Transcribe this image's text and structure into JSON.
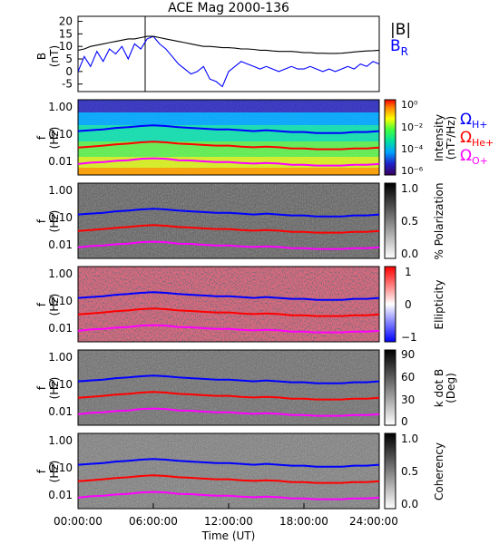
{
  "figure_title": "ACE Mag 2000-136",
  "time_axis": {
    "label": "Time (UT)",
    "ticks": [
      "00:00:00",
      "06:00:00",
      "12:00:00",
      "18:00:00",
      "24:00:00"
    ],
    "hours": [
      0,
      6,
      12,
      18,
      24
    ]
  },
  "chart_data": [
    {
      "type": "line",
      "ylabel_top": "B",
      "ylabel_bottom": "(nT)",
      "ylim": [
        -8,
        22
      ],
      "yticks": [
        20,
        15,
        10,
        5,
        0,
        -5
      ],
      "ytick_labels": [
        "20",
        "15",
        "10",
        "5",
        "0",
        "-5"
      ],
      "legend": [
        "|B|",
        "B",
        "R"
      ],
      "series": [
        {
          "name": "|B|",
          "color": "#000000",
          "x": [
            0,
            0.5,
            1,
            1.5,
            2,
            2.5,
            3,
            3.5,
            4,
            4.5,
            5,
            5.5,
            6,
            6.5,
            7,
            7.5,
            8,
            8.5,
            9,
            9.5,
            10,
            10.5,
            11,
            11.5,
            12,
            12.5,
            13,
            13.5,
            14,
            14.5,
            15,
            15.5,
            16,
            16.5,
            17,
            17.5,
            18,
            18.5,
            19,
            19.5,
            20,
            20.5,
            21,
            21.5,
            22,
            22.5,
            23,
            23.5,
            24
          ],
          "values": [
            8.5,
            9,
            10,
            10.5,
            11,
            11.5,
            12,
            12.5,
            13,
            13,
            13.5,
            14,
            14,
            13.5,
            13,
            12.5,
            12,
            11.5,
            11,
            10.5,
            10,
            10,
            9.8,
            9.5,
            9.5,
            9.3,
            9,
            9,
            8.8,
            8.5,
            8.5,
            8.2,
            8,
            8,
            8,
            7.8,
            7.5,
            7.5,
            7.3,
            7.3,
            7.2,
            7.2,
            7.3,
            7.5,
            7.8,
            8,
            8.2,
            8.3,
            8.5
          ]
        },
        {
          "name": "B_R",
          "color": "#0000ff",
          "x": [
            0,
            0.5,
            1,
            1.5,
            2,
            2.5,
            3,
            3.5,
            4,
            4.5,
            5,
            5.5,
            6,
            6.5,
            7,
            7.5,
            8,
            8.5,
            9,
            9.5,
            10,
            10.5,
            11,
            11.5,
            12,
            12.5,
            13,
            13.5,
            14,
            14.5,
            15,
            15.5,
            16,
            16.5,
            17,
            17.5,
            18,
            18.5,
            19,
            19.5,
            20,
            20.5,
            21,
            21.5,
            22,
            22.5,
            23,
            23.5,
            24
          ],
          "values": [
            0,
            6,
            2,
            8,
            4,
            9,
            7,
            10,
            5,
            11,
            9,
            13,
            14,
            11,
            9,
            6,
            3,
            1,
            -1,
            0,
            2,
            -3,
            -4,
            -6,
            0,
            2,
            4,
            3,
            2,
            1,
            2,
            1,
            0,
            1,
            2,
            1,
            1,
            2,
            1,
            0,
            1,
            0,
            1,
            2,
            1,
            3,
            2,
            4,
            3
          ]
        }
      ]
    },
    {
      "type": "heatmap",
      "ylabel_top": "f",
      "ylabel_bottom": "(Hz)",
      "yticks": [
        1.0,
        0.1,
        0.01
      ],
      "ytick_labels": [
        "1.00",
        "0.10",
        "0.01"
      ],
      "colorbar": {
        "title": "Intensity",
        "units": "(nT²/Hz)",
        "scale": "log",
        "range": [
          1e-06,
          1
        ],
        "tick_labels": [
          "10⁰",
          "10⁻²",
          "10⁻⁴",
          "10⁻⁶"
        ]
      },
      "gyro_lines": [
        {
          "name": "Ω",
          "sub": "H+",
          "color": "#0000ff"
        },
        {
          "name": "Ω",
          "sub": "He+",
          "color": "#ff0000"
        },
        {
          "name": "Ω",
          "sub": "O+",
          "color": "#ff00ff"
        }
      ]
    },
    {
      "type": "heatmap",
      "ylabel_top": "f",
      "ylabel_bottom": "(Hz)",
      "ytick_labels": [
        "1.00",
        "0.10",
        "0.01"
      ],
      "colorbar": {
        "title": "% Polarization",
        "range": [
          0,
          1
        ],
        "tick_labels": [
          "1.0",
          "0.5",
          "0.0"
        ]
      }
    },
    {
      "type": "heatmap",
      "ylabel_top": "f",
      "ylabel_bottom": "(Hz)",
      "ytick_labels": [
        "1.00",
        "0.10",
        "0.01"
      ],
      "colorbar": {
        "title": "Ellipticity",
        "range": [
          -1,
          1
        ],
        "tick_labels": [
          "1",
          "0",
          "−1"
        ]
      }
    },
    {
      "type": "heatmap",
      "ylabel_top": "f",
      "ylabel_bottom": "(Hz)",
      "ytick_labels": [
        "1.00",
        "0.10",
        "0.01"
      ],
      "colorbar": {
        "title": "k dot B",
        "units": "(Deg)",
        "range": [
          0,
          90
        ],
        "tick_labels": [
          "90",
          "60",
          "30",
          "0"
        ]
      }
    },
    {
      "type": "heatmap",
      "ylabel_top": "f",
      "ylabel_bottom": "(Hz)",
      "ytick_labels": [
        "1.00",
        "0.10",
        "0.01"
      ],
      "colorbar": {
        "title": "Coherency",
        "range": [
          0,
          1
        ],
        "tick_labels": [
          "1.0",
          "0.5",
          "0.0"
        ]
      }
    }
  ],
  "gyrofrequency_traces": {
    "time_hours": [
      0,
      1,
      2,
      3,
      4,
      5,
      6,
      7,
      8,
      9,
      10,
      11,
      12,
      13,
      14,
      15,
      16,
      17,
      18,
      19,
      20,
      21,
      22,
      23,
      24
    ],
    "H+": [
      0.13,
      0.14,
      0.15,
      0.17,
      0.18,
      0.2,
      0.21,
      0.2,
      0.18,
      0.17,
      0.16,
      0.15,
      0.15,
      0.14,
      0.13,
      0.14,
      0.13,
      0.12,
      0.12,
      0.11,
      0.11,
      0.11,
      0.12,
      0.12,
      0.13
    ],
    "He+": [
      0.032,
      0.035,
      0.038,
      0.042,
      0.045,
      0.05,
      0.053,
      0.05,
      0.045,
      0.043,
      0.04,
      0.038,
      0.038,
      0.035,
      0.033,
      0.035,
      0.033,
      0.03,
      0.03,
      0.028,
      0.028,
      0.028,
      0.03,
      0.03,
      0.032
    ],
    "O+": [
      0.008,
      0.009,
      0.0095,
      0.0105,
      0.011,
      0.0125,
      0.013,
      0.0125,
      0.011,
      0.0108,
      0.01,
      0.0095,
      0.0095,
      0.0088,
      0.0083,
      0.0088,
      0.0083,
      0.0075,
      0.0075,
      0.007,
      0.007,
      0.007,
      0.0075,
      0.0075,
      0.008
    ]
  }
}
